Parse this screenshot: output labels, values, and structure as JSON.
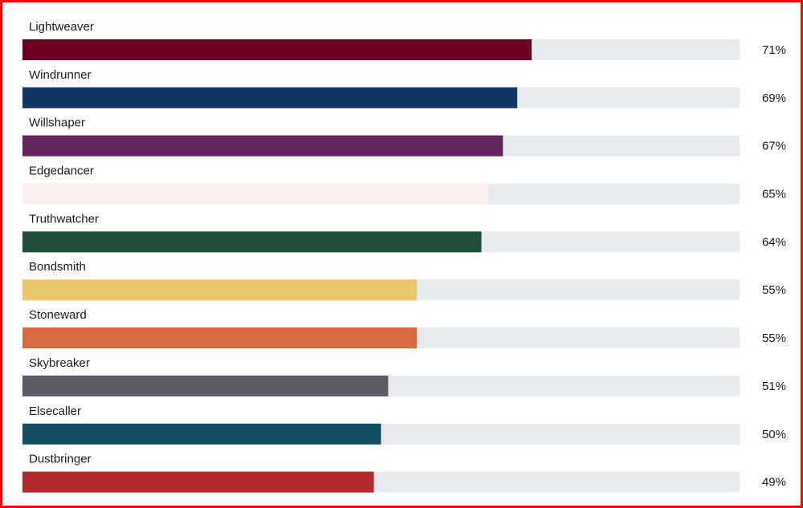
{
  "chart_data": {
    "type": "bar",
    "orientation": "horizontal",
    "categories": [
      "Lightweaver",
      "Windrunner",
      "Willshaper",
      "Edgedancer",
      "Truthwatcher",
      "Bondsmith",
      "Stoneward",
      "Skybreaker",
      "Elsecaller",
      "Dustbringer"
    ],
    "values": [
      71,
      69,
      67,
      65,
      64,
      55,
      55,
      51,
      50,
      49
    ],
    "value_labels": [
      "71%",
      "69%",
      "67%",
      "65%",
      "64%",
      "55%",
      "55%",
      "51%",
      "50%",
      "49%"
    ],
    "colors": [
      "#6b0020",
      "#133563",
      "#62285e",
      "#fbf1ee",
      "#1f4e3a",
      "#e9c86a",
      "#d56b42",
      "#5d5b66",
      "#134f60",
      "#b02a2f"
    ],
    "track_color": "#e8ebee",
    "xlim": [
      0,
      100
    ]
  }
}
